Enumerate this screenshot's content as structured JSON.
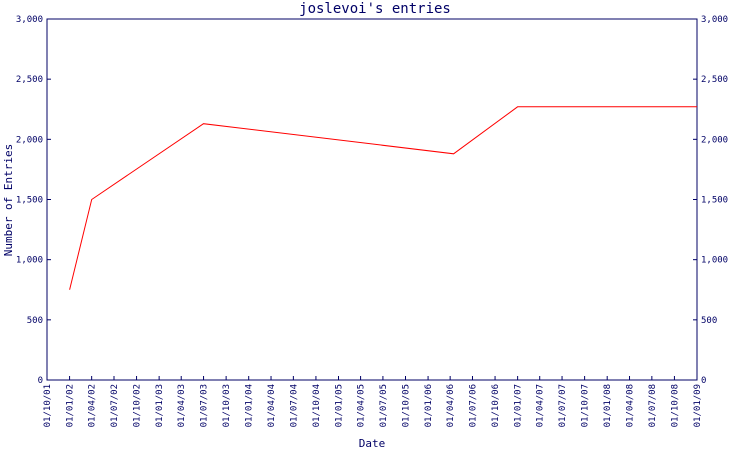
{
  "chart_data": {
    "type": "line",
    "title": "joslevoi's entries",
    "xlabel": "Date",
    "ylabel": "Number of Entries",
    "ylim": [
      0,
      3000
    ],
    "y_ticks": [
      "0",
      "500",
      "1,000",
      "1,500",
      "2,000",
      "2,500",
      "3,000"
    ],
    "x_ticks": [
      "01/10/01",
      "01/01/02",
      "01/04/02",
      "01/07/02",
      "01/10/02",
      "01/01/03",
      "01/04/03",
      "01/07/03",
      "01/10/03",
      "01/01/04",
      "01/04/04",
      "01/07/04",
      "01/10/04",
      "01/01/05",
      "01/04/05",
      "01/07/05",
      "01/10/05",
      "01/01/06",
      "01/04/06",
      "01/07/06",
      "01/10/06",
      "01/01/07",
      "01/04/07",
      "01/07/07",
      "01/10/07",
      "01/01/08",
      "01/04/08",
      "01/07/08",
      "01/10/08",
      "01/01/09"
    ],
    "series": [
      {
        "color": "#ff0000",
        "points": [
          {
            "x": "2002-01-01",
            "y": 750
          },
          {
            "x": "2002-04-01",
            "y": 1500
          },
          {
            "x": "2003-07-01",
            "y": 2130
          },
          {
            "x": "2006-04-15",
            "y": 1880
          },
          {
            "x": "2007-01-01",
            "y": 2270
          },
          {
            "x": "2009-01-01",
            "y": 2270
          }
        ]
      }
    ],
    "grid": false,
    "axis_color": "#000066"
  }
}
